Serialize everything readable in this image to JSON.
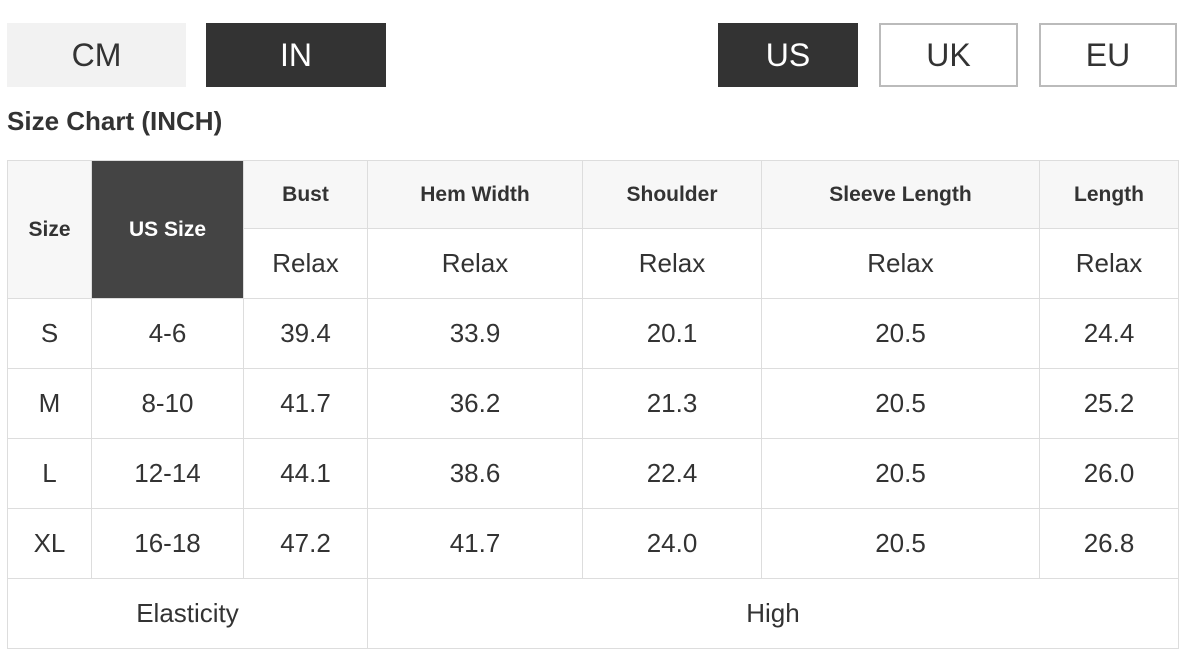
{
  "unit_buttons": [
    "CM",
    "IN"
  ],
  "region_buttons": [
    "US",
    "UK",
    "EU"
  ],
  "title": "Size Chart (INCH)",
  "table": {
    "header": [
      "Size",
      "US Size",
      "Bust",
      "Hem Width",
      "Shoulder",
      "Sleeve Length",
      "Length"
    ],
    "subheader": [
      "Relax",
      "Relax",
      "Relax",
      "Relax",
      "Relax"
    ],
    "rows": [
      [
        "S",
        "4-6",
        "39.4",
        "33.9",
        "20.1",
        "20.5",
        "24.4"
      ],
      [
        "M",
        "8-10",
        "41.7",
        "36.2",
        "21.3",
        "20.5",
        "25.2"
      ],
      [
        "L",
        "12-14",
        "44.1",
        "38.6",
        "22.4",
        "20.5",
        "26.0"
      ],
      [
        "XL",
        "16-18",
        "47.2",
        "41.7",
        "24.0",
        "20.5",
        "26.8"
      ]
    ],
    "footer": [
      "Elasticity",
      "High"
    ]
  }
}
